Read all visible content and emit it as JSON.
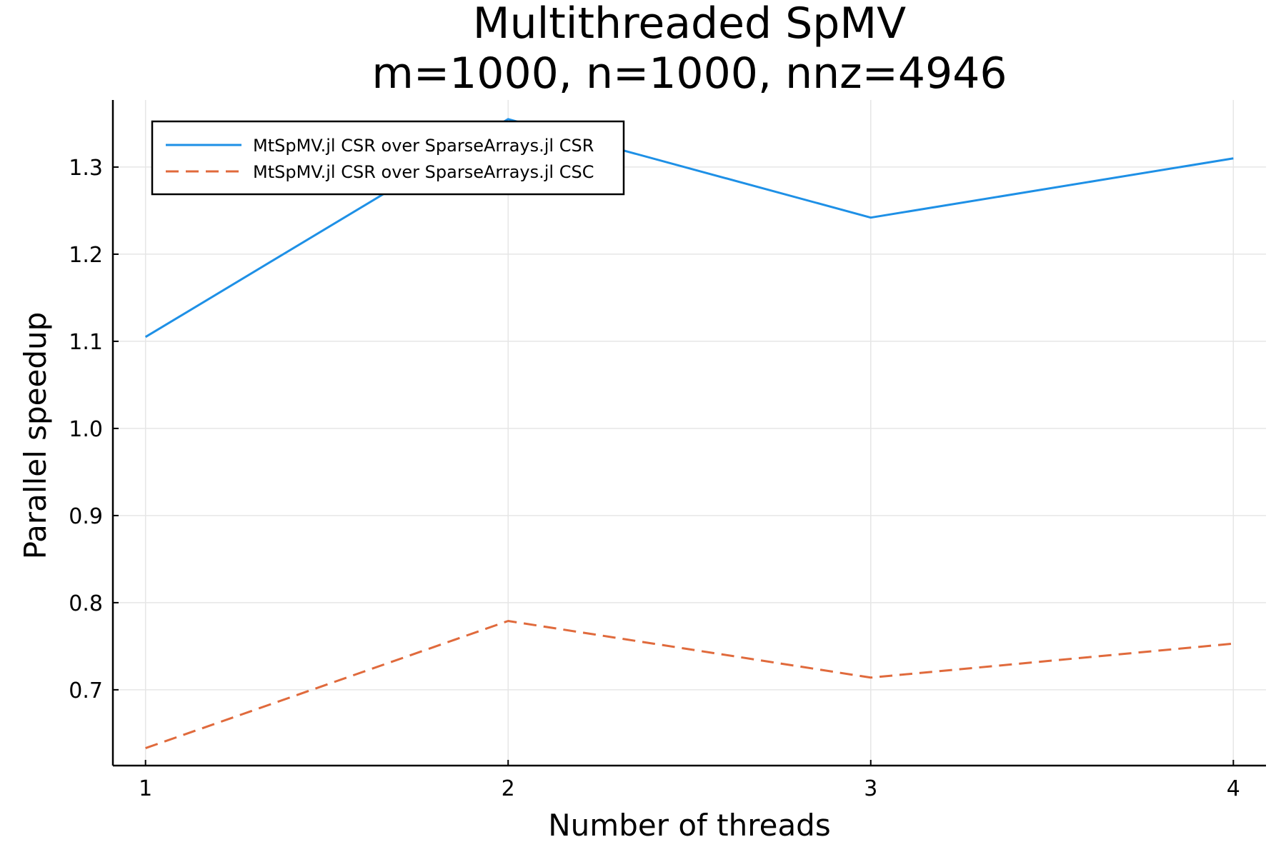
{
  "chart_data": {
    "type": "line",
    "title": "Multithreaded SpMV",
    "subtitle": "m=1000, n=1000, nnz=4946",
    "xlabel": "Number of threads",
    "ylabel": "Parallel speedup",
    "x": [
      1,
      2,
      3,
      4
    ],
    "xticks": [
      "1",
      "2",
      "3",
      "4"
    ],
    "yticks": [
      "0.7",
      "0.8",
      "0.9",
      "1.0",
      "1.1",
      "1.2",
      "1.3"
    ],
    "xlim": [
      0.91,
      4.09
    ],
    "ylim": [
      0.613,
      1.377
    ],
    "grid": true,
    "legend_position": "top-left",
    "series": [
      {
        "name": "MtSpMV.jl CSR over SparseArrays.jl CSR",
        "values": [
          1.105,
          1.355,
          1.242,
          1.31
        ],
        "color": "#1e90e6",
        "dash": "solid"
      },
      {
        "name": "MtSpMV.jl CSR over SparseArrays.jl CSC",
        "values": [
          0.633,
          0.779,
          0.714,
          0.753
        ],
        "color": "#e06a3c",
        "dash": "dashed"
      }
    ]
  }
}
